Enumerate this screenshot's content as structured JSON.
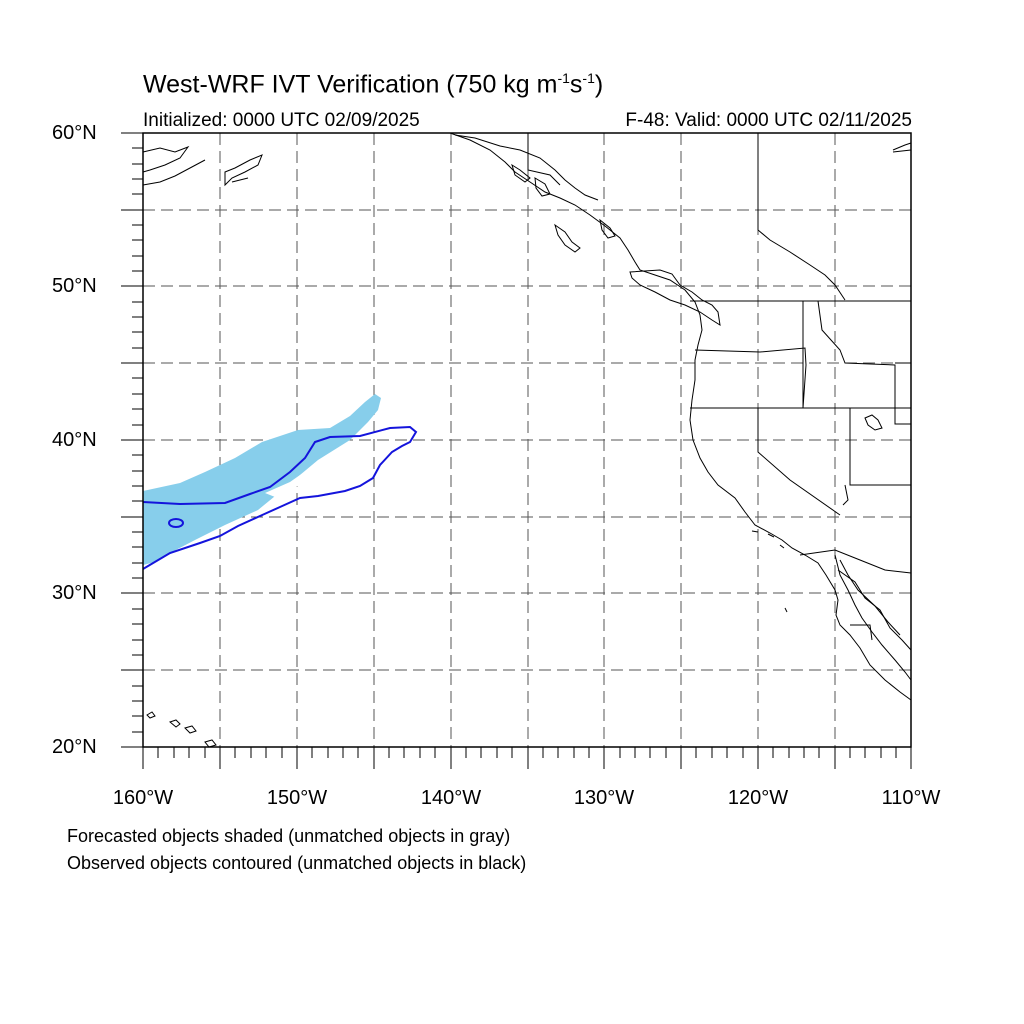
{
  "title": {
    "main": "West-WRF IVT Verification (750 kg m",
    "sup1": "-1",
    "mid": "s",
    "sup2": "-1",
    "end": ")"
  },
  "initialized": "Initialized: 0000 UTC 02/09/2025",
  "valid": "F-48: Valid: 0000 UTC 02/11/2025",
  "lat_labels": [
    "60°N",
    "50°N",
    "40°N",
    "30°N",
    "20°N"
  ],
  "lon_labels": [
    "160°W",
    "150°W",
    "140°W",
    "130°W",
    "120°W",
    "110°W"
  ],
  "captions": [
    "Forecasted objects shaded (unmatched objects in gray)",
    "Observed objects contoured (unmatched objects in black)"
  ],
  "colors": {
    "forecast_fill": "#87ceeb",
    "observed_contour": "#1414dc",
    "grid": "#555555",
    "coast": "#000000"
  },
  "map": {
    "lat_range": [
      20,
      60
    ],
    "lon_range": [
      -160,
      -110
    ],
    "gridline_interval_deg": 5,
    "gridline_style": "dashed"
  }
}
